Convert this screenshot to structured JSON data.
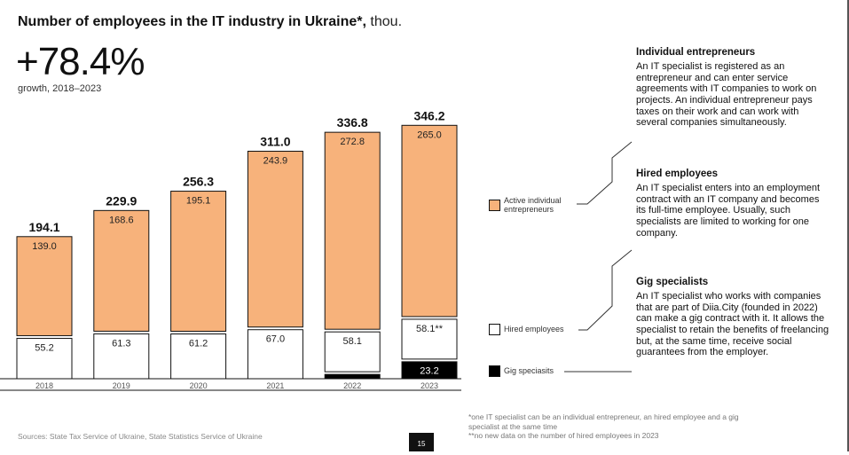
{
  "title": {
    "bold": "Number of employees in the IT industry in Ukraine*,",
    "unit": "thou."
  },
  "growth": {
    "value": "+78.4%",
    "label": "growth, 2018–2023"
  },
  "legend": {
    "entrepreneurs": "Active individual entrepreneurs",
    "hired": "Hired employees",
    "gig": "Gig speciasits"
  },
  "panels": [
    {
      "title": "Individual entrepreneurs",
      "text": "An IT specialist is registered as an entrepreneur and can enter service agreements with IT companies to work on projects. An individual entrepreneur pays taxes on their work and can work with several companies simultaneously."
    },
    {
      "title": "Hired employees",
      "text": "An IT specialist enters into an employment contract with an IT company and becomes its full-time employee. Usually, such specialists are limited to working for one company."
    },
    {
      "title": "Gig specialists",
      "text": "An IT specialist who works with companies that are part of Diia.City (founded in 2022) can make a gig contract with it. It allows the specialist to retain the benefits of freelancing but, at the same time, receive social guarantees from the employer."
    }
  ],
  "footnote": {
    "line1": "*one IT specialist can be an individual entrepreneur, an hired employee and a gig specialist at the same time",
    "line2": "**no new data on the number of hired employees in 2023"
  },
  "source": "Sources: State Tax Service of Ukraine, State Statistics Service of Ukraine",
  "page_number": "15",
  "colors": {
    "entrepreneurs": "#f7b27b",
    "hired": "#ffffff",
    "gig": "#000000",
    "border": "#111111"
  },
  "chart_data": {
    "type": "bar",
    "stacked": true,
    "categories": [
      "2018",
      "2019",
      "2020",
      "2021",
      "2022",
      "2023"
    ],
    "totals": [
      "194.1",
      "229.9",
      "256.3",
      "311.0",
      "336.8",
      "346.2"
    ],
    "series": [
      {
        "name": "Gig speciasits",
        "key": "gig",
        "values": [
          0,
          0,
          0,
          0,
          5.9,
          23.2
        ],
        "labels": [
          "",
          "",
          "",
          "",
          "5.9",
          "23.2"
        ]
      },
      {
        "name": "Hired employees",
        "key": "hired",
        "values": [
          55.2,
          61.3,
          61.2,
          67.0,
          58.1,
          58.1
        ],
        "labels": [
          "55.2",
          "61.3",
          "61.2",
          "67.0",
          "58.1",
          "58.1**"
        ]
      },
      {
        "name": "Active individual entrepreneurs",
        "key": "entrepreneurs",
        "values": [
          139.0,
          168.6,
          195.1,
          243.9,
          272.8,
          265.0
        ],
        "labels": [
          "139.0",
          "168.6",
          "195.1",
          "243.9",
          "272.8",
          "265.0"
        ]
      }
    ]
  }
}
